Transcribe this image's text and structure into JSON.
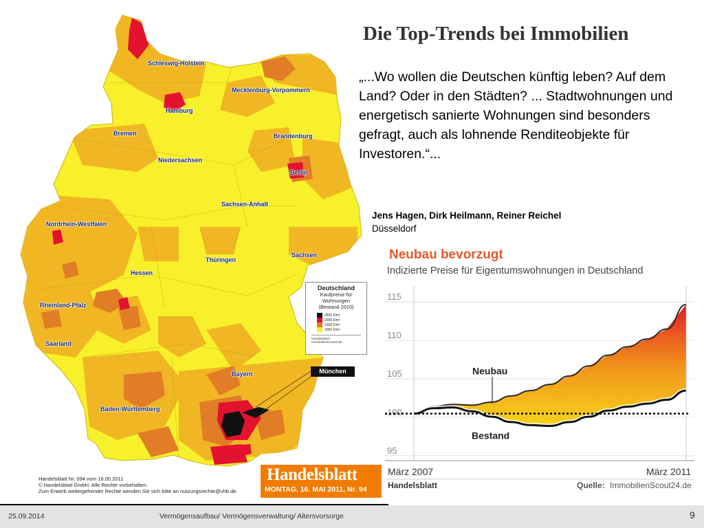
{
  "slide": {
    "title": "Die Top-Trends bei Immobilien",
    "quote": "„...Wo wollen die Deutschen künftig leben? Auf dem Land? Oder in den Städten? ... Stadtwohnungen und energetisch sanierte Wohnungen sind besonders gefragt, auch als lohnende Renditeobjekte für Investoren.“...",
    "authors": "Jens Hagen, Dirk Heilmann, Reiner Reichel",
    "city": "Düsseldorf"
  },
  "map": {
    "regions": [
      "Schleswig-Holstein",
      "Mecklenburg-Vorpommern",
      "Hamburg",
      "Bremen",
      "Brandenburg",
      "Niedersachsen",
      "Berlin",
      "Sachsen-Anhalt",
      "Nordrhein-Westfalen",
      "Sachsen",
      "Thüringen",
      "Hessen",
      "Rheinland-Pfalz",
      "Saarland",
      "Bayern",
      "Baden-Württemberg"
    ],
    "callout": "München",
    "colors": {
      "c1000": "#f7f02a",
      "c1500": "#f0b323",
      "c2000": "#e07d26",
      "c2500": "#e3122f",
      "black": "#111111"
    },
    "legend": {
      "title": "Deutschland",
      "subtitle1": "Kaufpreise für",
      "subtitle2": "Wohnungen",
      "subtitle3": "(Bestand 2010)",
      "items": [
        "2500 €/m²",
        "2000 €/m²",
        "1500 €/m²",
        "1000 €/m²"
      ],
      "footer": "Handelsblatt | ImmobilienScout24.de"
    },
    "caption": [
      "Handelsblatt Nr. 094 vom 16.05.2011",
      "© Handelsblatt GmbH. Alle Rechte vorbehalten.",
      "Zum Erwerb weitergehender Rechte wenden Sie sich bitte an nutzungsrechte@vhb.de."
    ]
  },
  "badge": {
    "name": "Handelsblatt",
    "date": "MONTAG, 16. MAI 2011, Nr. 94"
  },
  "chart_data": {
    "type": "area",
    "title": "Neubau bevorzugt",
    "subtitle": "Indizierte Preise für Eigentumswohnungen in Deutschland",
    "yticks": [
      95,
      100,
      105,
      110,
      115
    ],
    "ylim": [
      94,
      116
    ],
    "x_start_label": "März 2007",
    "x_end_label": "März 2011",
    "baseline": 99.4,
    "series": [
      {
        "name": "Neubau",
        "values": [
          99.5,
          100.3,
          100.6,
          100.5,
          100.9,
          101.7,
          102.4,
          103.2,
          104.3,
          105.6,
          107.0,
          108.1,
          109.1,
          110.4,
          113.6
        ],
        "color": "#e8581f"
      },
      {
        "name": "Bestand",
        "values": [
          99.4,
          100.1,
          100.2,
          99.7,
          99.0,
          98.3,
          97.9,
          97.8,
          98.3,
          99.0,
          99.8,
          100.3,
          100.7,
          101.2,
          102.4
        ],
        "color": "#111111"
      }
    ],
    "annotation_source_label": "Quelle:",
    "source": "ImmobilienScout24.de",
    "publisher": "Handelsblatt"
  },
  "footer": {
    "date": "25.09.2014",
    "text": "Vermögensaufbau/ Vermögensverwaltung/ Altersvorsorge",
    "page": "9"
  }
}
